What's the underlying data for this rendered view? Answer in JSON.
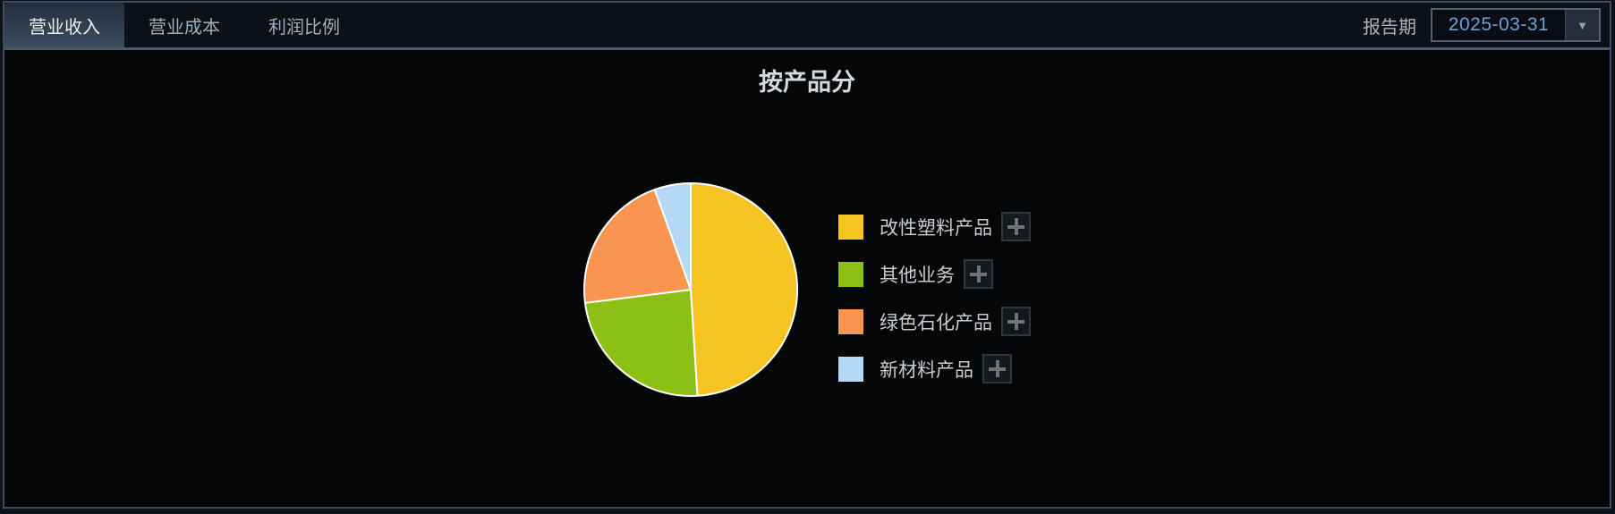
{
  "tabs": [
    {
      "label": "营业收入",
      "active": true
    },
    {
      "label": "营业成本",
      "active": false
    },
    {
      "label": "利润比例",
      "active": false
    }
  ],
  "report_period": {
    "label": "报告期",
    "value": "2025-03-31",
    "dropdown_icon": "chevron-down"
  },
  "chart_data": {
    "type": "pie",
    "title": "按产品分",
    "labels": [
      "改性塑料产品",
      "其他业务",
      "绿色石化产品",
      "新材料产品"
    ],
    "values": [
      49.0,
      24.0,
      21.5,
      5.5
    ],
    "unit": "percent-share-estimated-from-arc-angles",
    "colors": [
      "#f5c422",
      "#8cc014",
      "#f99551",
      "#b5d8f6"
    ],
    "slice_border_color": "#ffffff",
    "start_angle": "12-o-clock",
    "direction": "clockwise",
    "legend_position": "right-middle"
  },
  "legend": {
    "plus_icon": "plus"
  },
  "colors": {
    "accent_value_text": "#6f9fd9",
    "tab_active_bg": "#3e4c61",
    "panel_border": "#3e4b5d",
    "content_bg": "#050607"
  }
}
